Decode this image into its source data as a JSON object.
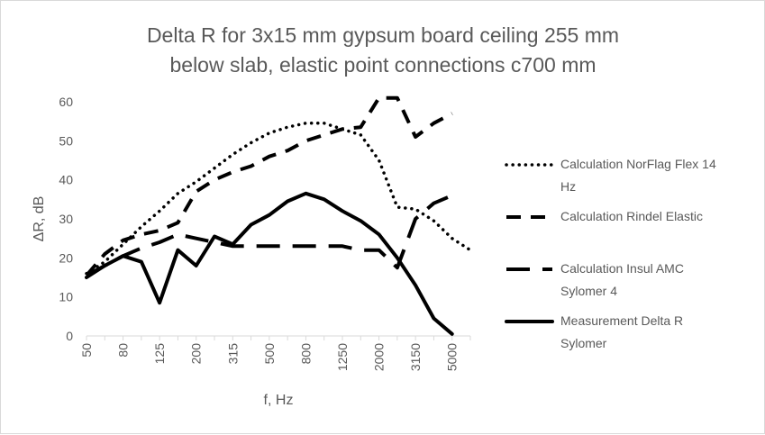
{
  "chart_data": {
    "type": "line",
    "title": [
      "Delta R for 3x15 mm gypsum board ceiling 255 mm",
      "below slab, elastic point connections c700 mm"
    ],
    "xlabel": "f, Hz",
    "ylabel": "ΔR, dB",
    "ylim": [
      0,
      60
    ],
    "yticks": [
      0,
      10,
      20,
      30,
      40,
      50,
      60
    ],
    "grid": false,
    "legend_position": "right",
    "categories": [
      "50",
      "63",
      "80",
      "100",
      "125",
      "160",
      "200",
      "250",
      "315",
      "400",
      "500",
      "630",
      "800",
      "1000",
      "1250",
      "1600",
      "2000",
      "2500",
      "3150",
      "4000",
      "5000",
      "6300"
    ],
    "x_tick_labels": [
      "50",
      "80",
      "125",
      "200",
      "315",
      "500",
      "800",
      "1250",
      "2000",
      "3150",
      "5000"
    ],
    "series": [
      {
        "name": "Calculation NorFlag Flex 14 Hz",
        "legend_lines": [
          "Calculation NorFlag Flex 14",
          "Hz"
        ],
        "style": "dotted",
        "values": [
          16,
          19,
          23.5,
          28,
          32,
          36.5,
          39.5,
          43,
          46.5,
          49.5,
          52,
          53.5,
          54.5,
          54.5,
          53,
          51.5,
          45,
          33,
          32.5,
          29.5,
          25,
          22
        ]
      },
      {
        "name": "Calculation Rindel Elastic",
        "legend_lines": [
          "Calculation Rindel Elastic"
        ],
        "style": "dashed",
        "values": [
          15.5,
          21,
          24.5,
          26,
          27,
          29,
          37,
          40,
          42,
          43.5,
          46,
          47.5,
          50,
          51.5,
          53,
          53.5,
          61,
          61,
          51,
          54.5,
          57,
          null
        ]
      },
      {
        "name": "Calculation Insul AMC Sylomer 4",
        "legend_lines": [
          "Calculation Insul AMC",
          "Sylomer 4"
        ],
        "style": "longdash",
        "values": [
          15.5,
          18,
          20.5,
          22.5,
          24,
          26,
          25,
          24,
          23,
          23,
          23,
          23,
          23,
          23,
          23,
          22,
          22,
          17.5,
          30,
          34,
          36,
          null
        ]
      },
      {
        "name": "Measurement Delta R Sylomer",
        "legend_lines": [
          "Measurement Delta R",
          "Sylomer"
        ],
        "style": "solid",
        "values": [
          15,
          18,
          20.5,
          19,
          8.5,
          22,
          18,
          25.5,
          23.5,
          28.5,
          31,
          34.5,
          36.5,
          35,
          32,
          29.5,
          26,
          20,
          13,
          4.5,
          0.5,
          null
        ]
      }
    ]
  }
}
